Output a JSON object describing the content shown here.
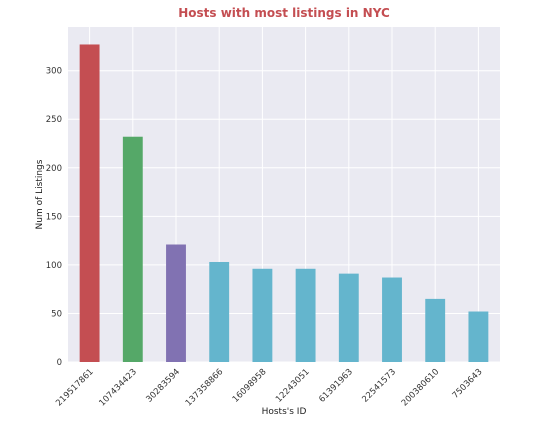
{
  "colors": {
    "plot_background": "#eaeaf2",
    "grid": "#ffffff",
    "title": "#c44e52"
  },
  "chart_data": {
    "type": "bar",
    "title": "Hosts with most listings in NYC",
    "xlabel": "Hosts's ID",
    "ylabel": "Num of Listings",
    "categories": [
      "219517861",
      "107434423",
      "30283594",
      "137358866",
      "16098958",
      "12243051",
      "61391963",
      "22541573",
      "200380610",
      "7503643"
    ],
    "values": [
      327,
      232,
      121,
      103,
      96,
      96,
      91,
      87,
      65,
      52
    ],
    "bar_colors": [
      "#c44e52",
      "#55a868",
      "#8172b2",
      "#64b5cd",
      "#64b5cd",
      "#64b5cd",
      "#64b5cd",
      "#64b5cd",
      "#64b5cd",
      "#64b5cd"
    ],
    "ylim": [
      0,
      345
    ],
    "yticks": [
      0,
      50,
      100,
      150,
      200,
      250,
      300
    ],
    "grid": true,
    "legend": "none"
  }
}
